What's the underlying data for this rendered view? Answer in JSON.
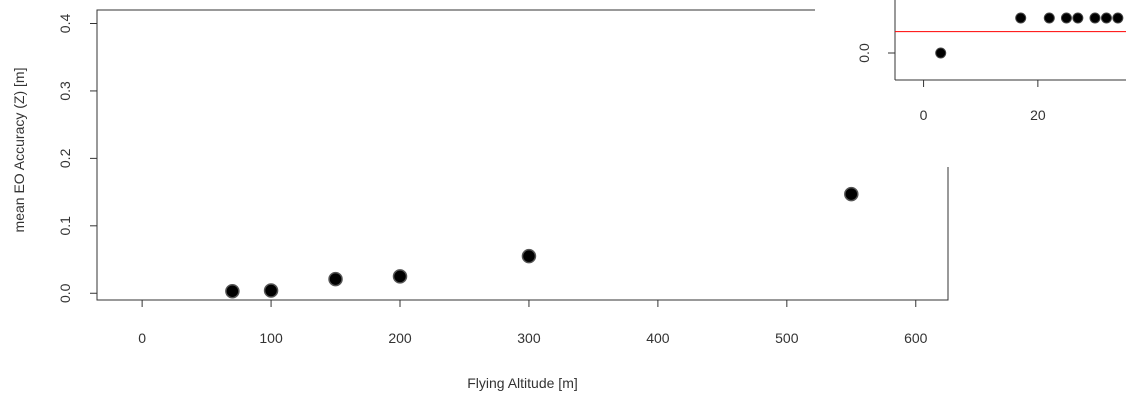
{
  "chart_data": [
    {
      "type": "scatter",
      "title": "",
      "xlabel": "Flying Altitude [m]",
      "ylabel": "mean EO Accuracy (Z) [m]",
      "xlim": [
        -35,
        625
      ],
      "ylim": [
        -0.01,
        0.42
      ],
      "x_ticks": [
        "0",
        "100",
        "200",
        "300",
        "400",
        "500",
        "600"
      ],
      "y_ticks": [
        "0.0",
        "0.1",
        "0.2",
        "0.3",
        "0.4"
      ],
      "grid": false,
      "series": [
        {
          "x": [
            70,
            100,
            150,
            200,
            300,
            550
          ],
          "y": [
            0.003,
            0.004,
            0.021,
            0.025,
            0.055,
            0.147
          ]
        }
      ]
    },
    {
      "type": "scatter",
      "title": "",
      "xlabel": "",
      "ylabel": "",
      "xlim": [
        -5,
        37
      ],
      "x_ticks": [
        "0",
        "20"
      ],
      "y_ticks": [
        "0.0"
      ],
      "reference_line": {
        "y": 0.011,
        "color": "#ff0000"
      },
      "grid": false,
      "series": [
        {
          "x": [
            3,
            17,
            22,
            25,
            27,
            30,
            32,
            34
          ],
          "y": [
            0.0,
            0.018,
            0.018,
            0.018,
            0.018,
            0.018,
            0.018,
            0.018
          ]
        }
      ]
    }
  ]
}
